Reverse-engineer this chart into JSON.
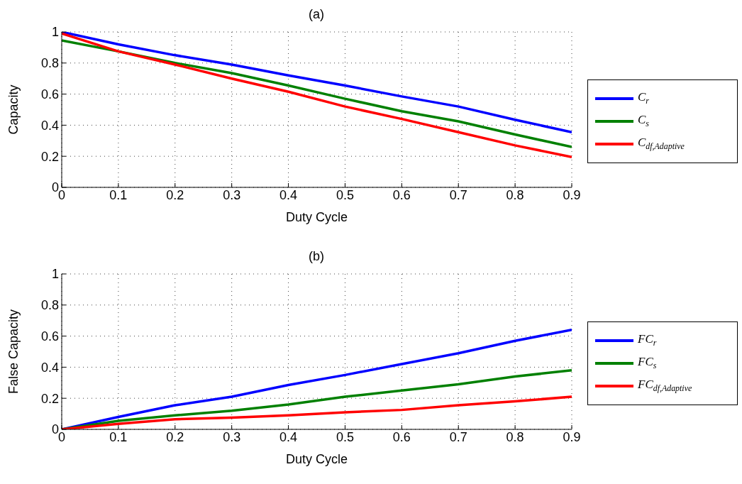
{
  "chart_data": [
    {
      "type": "line",
      "title": "(a)",
      "xlabel": "Duty Cycle",
      "ylabel": "Capacity",
      "x": [
        0,
        0.1,
        0.2,
        0.3,
        0.4,
        0.5,
        0.6,
        0.7,
        0.8,
        0.9
      ],
      "xlim": [
        0,
        0.9
      ],
      "xticks": [
        0,
        0.1,
        0.2,
        0.3,
        0.4,
        0.5,
        0.6,
        0.7,
        0.8,
        0.9
      ],
      "ylim": [
        0,
        1
      ],
      "yticks": [
        0,
        0.2,
        0.4,
        0.6,
        0.8,
        1
      ],
      "grid": true,
      "legend": "right",
      "marker": "none",
      "line_style": "solid",
      "series": [
        {
          "name": "C$_{r}$",
          "color": "#0000ff",
          "values": [
            1.0,
            0.92,
            0.85,
            0.79,
            0.72,
            0.655,
            0.585,
            0.52,
            0.435,
            0.355
          ]
        },
        {
          "name": "C$_{s}$",
          "color": "#008000",
          "values": [
            0.945,
            0.875,
            0.8,
            0.735,
            0.655,
            0.57,
            0.49,
            0.425,
            0.34,
            0.26
          ]
        },
        {
          "name": "C$_{df,Adaptive}$",
          "color": "#ff0000",
          "values": [
            0.99,
            0.875,
            0.79,
            0.7,
            0.615,
            0.52,
            0.44,
            0.355,
            0.27,
            0.195
          ]
        }
      ]
    },
    {
      "type": "line",
      "title": "(b)",
      "xlabel": "Duty Cycle",
      "ylabel": "False Capacity",
      "x": [
        0,
        0.1,
        0.2,
        0.3,
        0.4,
        0.5,
        0.6,
        0.7,
        0.8,
        0.9
      ],
      "xlim": [
        0,
        0.9
      ],
      "xticks": [
        0,
        0.1,
        0.2,
        0.3,
        0.4,
        0.5,
        0.6,
        0.7,
        0.8,
        0.9
      ],
      "ylim": [
        0,
        1
      ],
      "yticks": [
        0,
        0.2,
        0.4,
        0.6,
        0.8,
        1
      ],
      "grid": true,
      "legend": "right",
      "marker": "none",
      "line_style": "solid",
      "series": [
        {
          "name": "FC$_{r}$",
          "color": "#0000ff",
          "values": [
            0,
            0.08,
            0.155,
            0.21,
            0.285,
            0.35,
            0.42,
            0.49,
            0.57,
            0.64
          ]
        },
        {
          "name": "FC$_{s}$",
          "color": "#008000",
          "values": [
            0,
            0.055,
            0.09,
            0.12,
            0.16,
            0.21,
            0.25,
            0.29,
            0.34,
            0.38
          ]
        },
        {
          "name": "FC$_{df,Adaptive}$",
          "color": "#ff0000",
          "values": [
            0,
            0.035,
            0.065,
            0.075,
            0.09,
            0.11,
            0.125,
            0.155,
            0.18,
            0.21
          ]
        }
      ]
    }
  ]
}
